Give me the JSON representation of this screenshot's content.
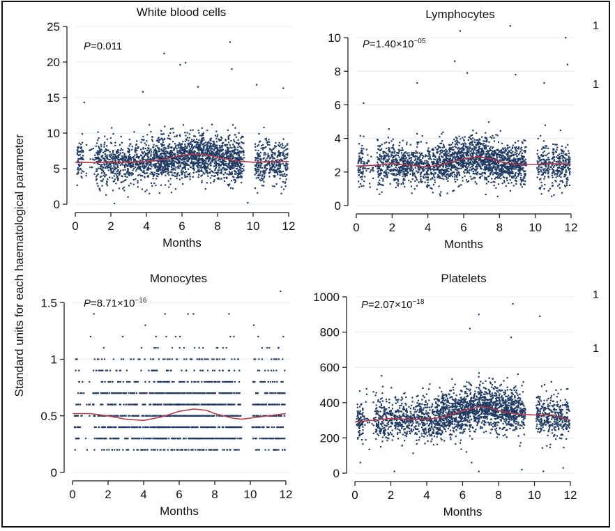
{
  "figure": {
    "ylabel": "Standard units for each haematological parameter",
    "stray_marks": [
      "1",
      "1",
      "1",
      "1"
    ],
    "colors": {
      "points": "#1f3a63",
      "trend": "#b5384a",
      "axis": "#111111"
    }
  },
  "chart_data": [
    {
      "type": "scatter",
      "title": "White blood cells",
      "xlabel": "Months",
      "ylabel": "",
      "xlim": [
        0,
        12
      ],
      "ylim": [
        0,
        25
      ],
      "xticks": [
        0,
        2,
        4,
        6,
        8,
        10,
        12
      ],
      "yticks": [
        0,
        5,
        10,
        15,
        20,
        25
      ],
      "annotation": {
        "prefix": "P",
        "text": "=0.011"
      },
      "point_summary": {
        "count": 2600,
        "x_gap": [
          9.5,
          10.1
        ],
        "baseline_by_month": [
          [
            0,
            5.9
          ],
          [
            2,
            5.9
          ],
          [
            4,
            6.0
          ],
          [
            6,
            6.8
          ],
          [
            7,
            7.0
          ],
          [
            8,
            6.5
          ],
          [
            10,
            6.0
          ],
          [
            12,
            6.0
          ]
        ],
        "spread": 1.9,
        "outliers": [
          [
            5,
            21.2
          ],
          [
            8.7,
            22.8
          ],
          [
            5.9,
            19.6
          ],
          [
            6.2,
            19.9
          ],
          [
            8.8,
            19.0
          ],
          [
            2.2,
            0.1
          ],
          [
            9.7,
            0.2
          ],
          [
            0.5,
            14.3
          ],
          [
            10.2,
            16.8
          ],
          [
            11.7,
            16.3
          ],
          [
            3.8,
            15.8
          ],
          [
            6.9,
            16.5
          ]
        ]
      },
      "trend": {
        "x": [
          0,
          1,
          2,
          3,
          4,
          5,
          6,
          6.7,
          7.5,
          8,
          9,
          10,
          11,
          12
        ],
        "y": [
          5.9,
          5.85,
          5.9,
          5.9,
          6.0,
          6.3,
          6.9,
          7.05,
          6.9,
          6.6,
          6.1,
          5.9,
          6.0,
          6.0
        ]
      }
    },
    {
      "type": "scatter",
      "title": "Lymphocytes",
      "xlabel": "Months",
      "ylabel": "",
      "xlim": [
        0,
        12
      ],
      "ylim": [
        0,
        11
      ],
      "xticks": [
        0,
        2,
        4,
        6,
        8,
        10,
        12
      ],
      "yticks": [
        0,
        2,
        4,
        6,
        8,
        10
      ],
      "annotation": {
        "prefix": "P",
        "text": "=1.40×10",
        "sup": "−05"
      },
      "point_summary": {
        "count": 2600,
        "x_gap": [
          9.5,
          10.1
        ],
        "baseline_by_month": [
          [
            0,
            2.4
          ],
          [
            2,
            2.5
          ],
          [
            4,
            2.3
          ],
          [
            6,
            2.8
          ],
          [
            7,
            2.9
          ],
          [
            8,
            2.5
          ],
          [
            10,
            2.4
          ],
          [
            12,
            2.4
          ]
        ],
        "spread": 0.8,
        "outliers": [
          [
            5.8,
            10.4
          ],
          [
            8.6,
            10.7
          ],
          [
            11.7,
            10.0
          ],
          [
            5.5,
            8.6
          ],
          [
            11.8,
            8.4
          ],
          [
            0.4,
            6.1
          ],
          [
            6.2,
            7.9
          ],
          [
            8.9,
            7.8
          ],
          [
            3.4,
            7.3
          ],
          [
            10.5,
            7.3
          ]
        ]
      },
      "trend": {
        "x": [
          0,
          1,
          2,
          3,
          4,
          5,
          6,
          6.8,
          7.5,
          8,
          9,
          10,
          11,
          12
        ],
        "y": [
          2.35,
          2.4,
          2.5,
          2.4,
          2.3,
          2.5,
          2.8,
          2.9,
          2.8,
          2.6,
          2.45,
          2.45,
          2.5,
          2.45
        ]
      }
    },
    {
      "type": "scatter",
      "title": "Monocytes",
      "xlabel": "Months",
      "ylabel": "",
      "xlim": [
        0,
        12
      ],
      "ylim": [
        0,
        1.6
      ],
      "xticks": [
        0,
        2,
        4,
        6,
        8,
        10,
        12
      ],
      "yticks": [
        0,
        0.5,
        1,
        1.5
      ],
      "yticklabels": [
        "0",
        "0.5",
        "1",
        "1.5"
      ],
      "annotation": {
        "prefix": "P",
        "text": "=8.71×10",
        "sup": "−16"
      },
      "point_summary": {
        "discrete_step": 0.1,
        "dense_rows": [
          0.3,
          0.4,
          0.5,
          0.6,
          0.7
        ],
        "sparse_rows": [
          0.2,
          0.8,
          0.9,
          1.0,
          1.1,
          1.2
        ],
        "x_gap": [
          9.5,
          10.1
        ],
        "outliers": [
          [
            11.7,
            1.6
          ],
          [
            1.2,
            1.4
          ],
          [
            6.5,
            1.4
          ],
          [
            6.8,
            1.4
          ],
          [
            8.8,
            1.4
          ],
          [
            10.2,
            1.3
          ],
          [
            4.1,
            1.3
          ],
          [
            5.2,
            1.4
          ]
        ]
      },
      "trend": {
        "x": [
          0,
          1,
          2,
          3,
          4,
          5,
          6,
          6.8,
          7.5,
          8,
          9,
          9.5,
          10,
          11,
          12
        ],
        "y": [
          0.52,
          0.52,
          0.5,
          0.47,
          0.46,
          0.49,
          0.54,
          0.56,
          0.55,
          0.52,
          0.48,
          0.47,
          0.48,
          0.5,
          0.52
        ]
      }
    },
    {
      "type": "scatter",
      "title": "Platelets",
      "xlabel": "Months",
      "ylabel": "",
      "xlim": [
        0,
        12
      ],
      "ylim": [
        0,
        1000
      ],
      "xticks": [
        0,
        2,
        4,
        6,
        8,
        10,
        12
      ],
      "yticks": [
        0,
        200,
        400,
        600,
        800,
        1000
      ],
      "annotation": {
        "prefix": "P",
        "text": "=2.07×10",
        "sup": "−18"
      },
      "point_summary": {
        "count": 2600,
        "x_gap": [
          9.5,
          10.1
        ],
        "baseline_by_month": [
          [
            0,
            290
          ],
          [
            2,
            310
          ],
          [
            4,
            305
          ],
          [
            6,
            350
          ],
          [
            7,
            375
          ],
          [
            8,
            360
          ],
          [
            10,
            330
          ],
          [
            12,
            300
          ]
        ],
        "spread": 80,
        "outliers": [
          [
            6.9,
            900
          ],
          [
            8.8,
            960
          ],
          [
            10.3,
            890
          ],
          [
            6.4,
            820
          ],
          [
            8.7,
            770
          ],
          [
            6.5,
            60
          ],
          [
            6.9,
            10
          ],
          [
            2.2,
            10
          ],
          [
            9.3,
            20
          ],
          [
            11.6,
            30
          ],
          [
            0.3,
            60
          ],
          [
            10.5,
            10
          ]
        ]
      },
      "trend": {
        "x": [
          0,
          1,
          2,
          3,
          4,
          5,
          6,
          7,
          7.5,
          8,
          9,
          10,
          11,
          12
        ],
        "y": [
          290,
          300,
          310,
          305,
          305,
          320,
          355,
          378,
          370,
          355,
          335,
          330,
          330,
          300
        ]
      }
    }
  ]
}
